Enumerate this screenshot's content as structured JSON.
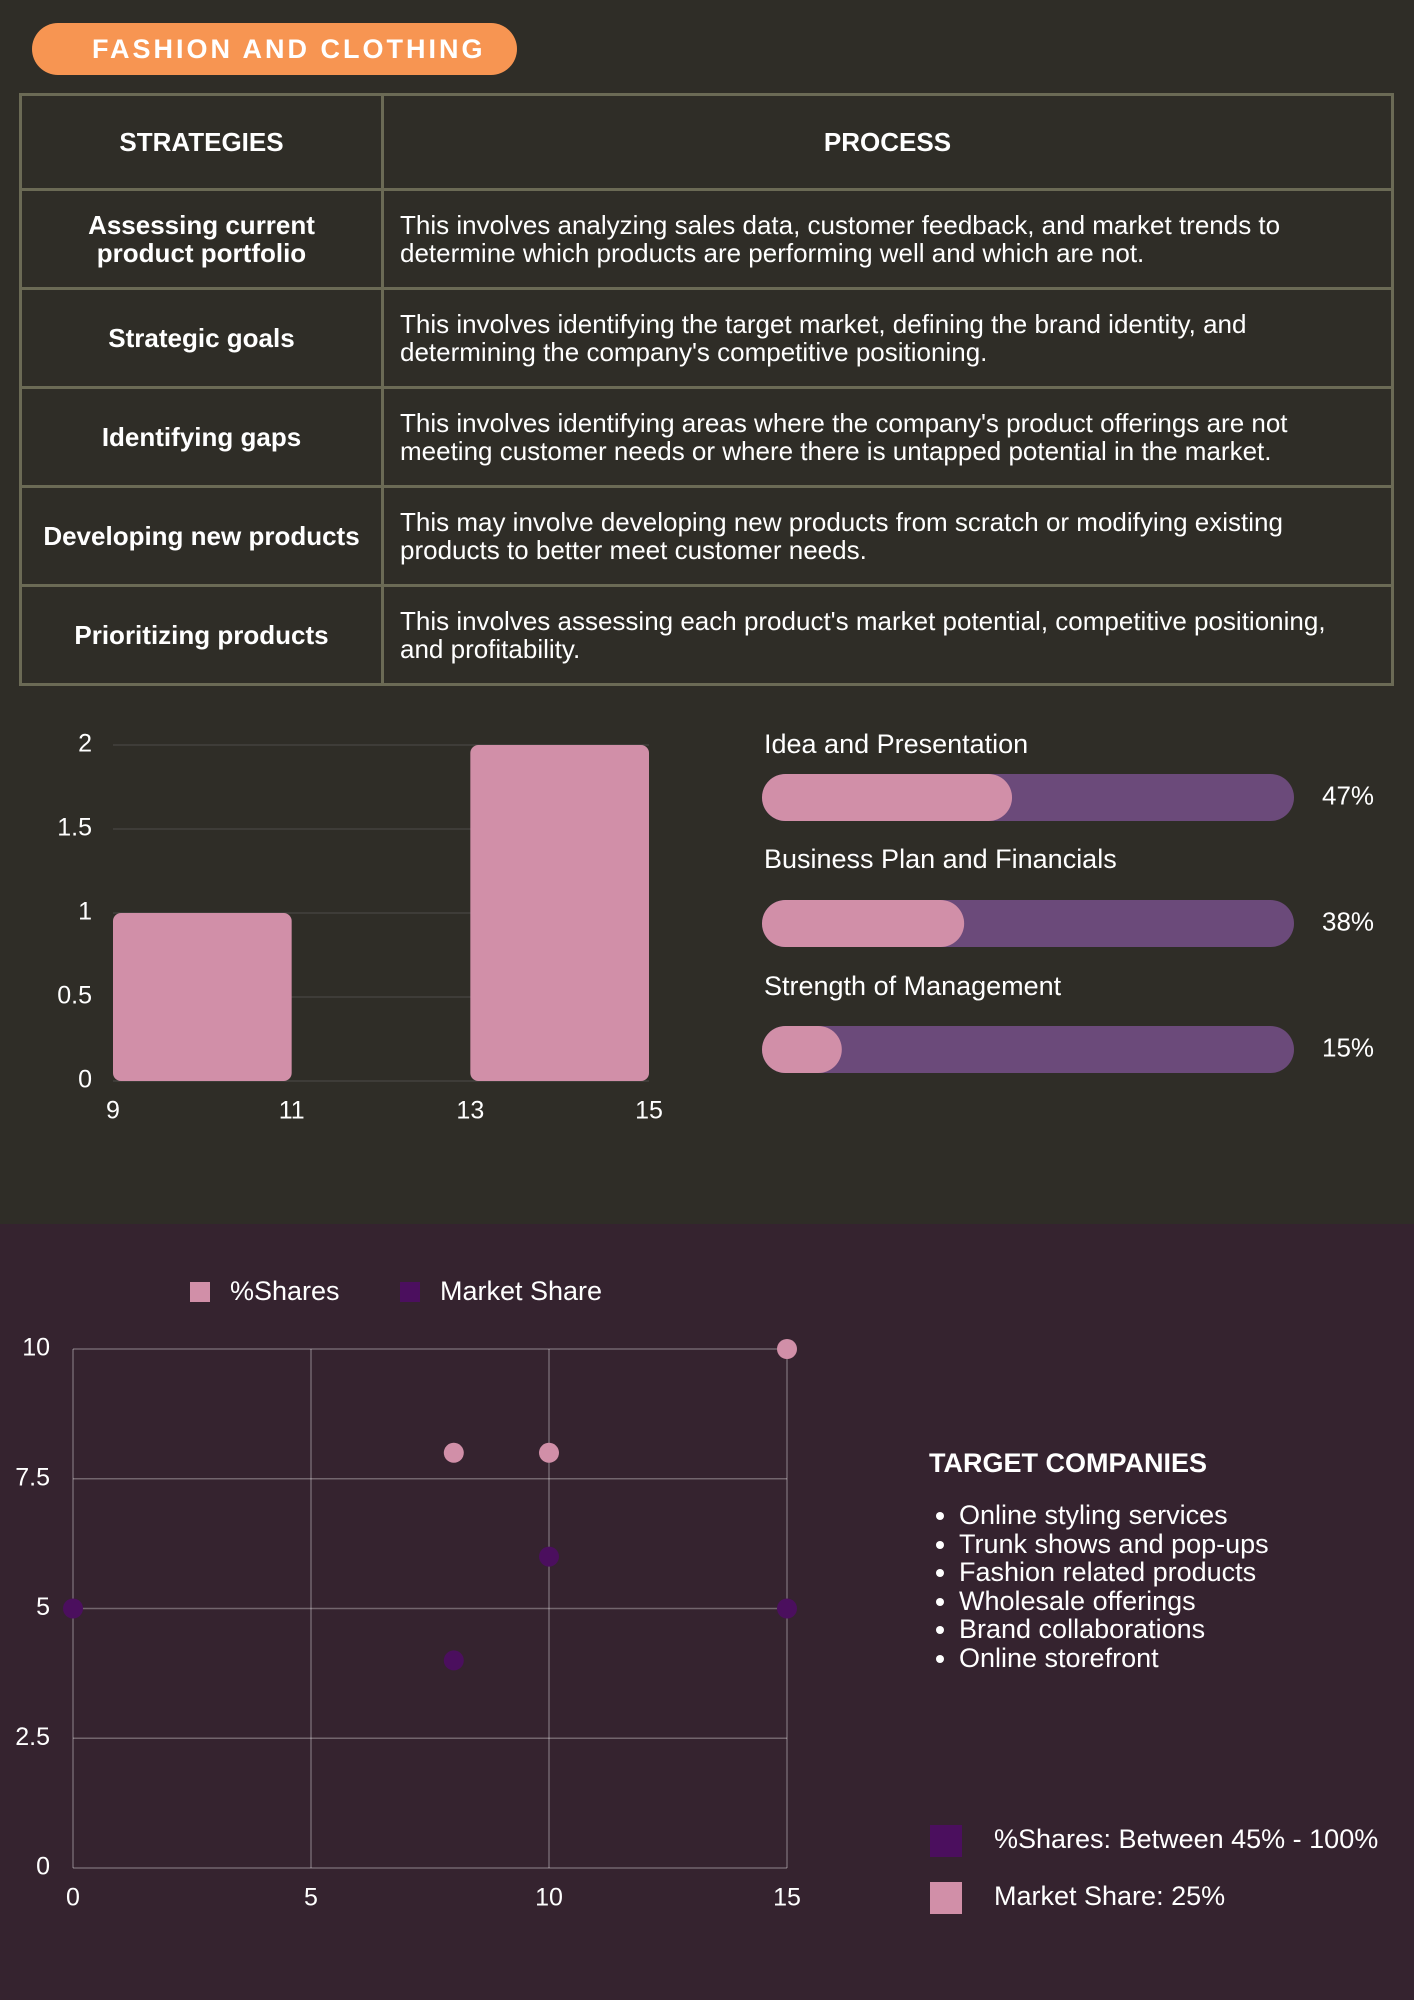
{
  "header": {
    "title": "FASHION AND CLOTHING"
  },
  "table": {
    "columns": [
      "STRATEGIES",
      "PROCESS"
    ],
    "rows": [
      [
        "Assessing current product portfolio",
        "This involves analyzing sales data, customer feedback, and market trends to determine which products are performing well and which are not."
      ],
      [
        "Strategic goals",
        "This involves identifying the target market, defining the brand identity, and determining the company's competitive positioning."
      ],
      [
        "Identifying gaps",
        "This involves identifying areas where the company's product offerings are not meeting customer needs or where there is untapped potential in the market."
      ],
      [
        "Developing new products",
        "This may involve developing new products from scratch or modifying existing products to better meet customer needs."
      ],
      [
        "Prioritizing products",
        "This involves assessing each product's market potential, competitive positioning, and profitability."
      ]
    ]
  },
  "chart_data": [
    {
      "type": "histogram",
      "bins": [
        9,
        11,
        13,
        15
      ],
      "values": [
        1,
        0,
        2
      ],
      "color": "#d18fa8",
      "xlim": [
        9,
        15
      ],
      "xticks": [
        9,
        11,
        13,
        15
      ],
      "ylim": [
        0,
        2
      ],
      "yticks": [
        0,
        0.5,
        1,
        1.5,
        2
      ],
      "grid": true
    },
    {
      "type": "progress",
      "categories": [
        "Idea and Presentation",
        "Business Plan and Financials",
        "Strength of Management"
      ],
      "values": [
        47,
        38,
        15
      ],
      "value_labels": [
        "47%",
        "38%",
        "15%"
      ],
      "xlim": [
        0,
        100
      ],
      "color": "#d18fa8",
      "track_color": "#6b4a7a"
    },
    {
      "type": "scatter",
      "series": [
        {
          "name": "%Shares",
          "color": "#d18fa8",
          "x": [
            8,
            10,
            15
          ],
          "values": [
            8,
            8,
            10
          ]
        },
        {
          "name": "Market Share",
          "color": "#4b0f5e",
          "x": [
            0,
            8,
            10,
            15
          ],
          "values": [
            5,
            4,
            6,
            5
          ]
        }
      ],
      "xlim": [
        0,
        15
      ],
      "xticks": [
        0,
        5,
        10,
        15
      ],
      "ylim": [
        0,
        10
      ],
      "yticks": [
        0,
        2.5,
        5,
        7.5,
        10
      ],
      "grid": true
    }
  ],
  "target_companies": {
    "title": "TARGET COMPANIES",
    "items": [
      "Online styling services",
      "Trunk shows and pop-ups",
      "Fashion related products",
      "Wholesale offerings",
      "Brand collaborations",
      "Online storefront"
    ]
  },
  "notes": [
    {
      "text": "%Shares: Between 45% - 100%",
      "color": "#4b0f5e"
    },
    {
      "text": "Market Share: 25%",
      "color": "#d18fa8"
    }
  ]
}
